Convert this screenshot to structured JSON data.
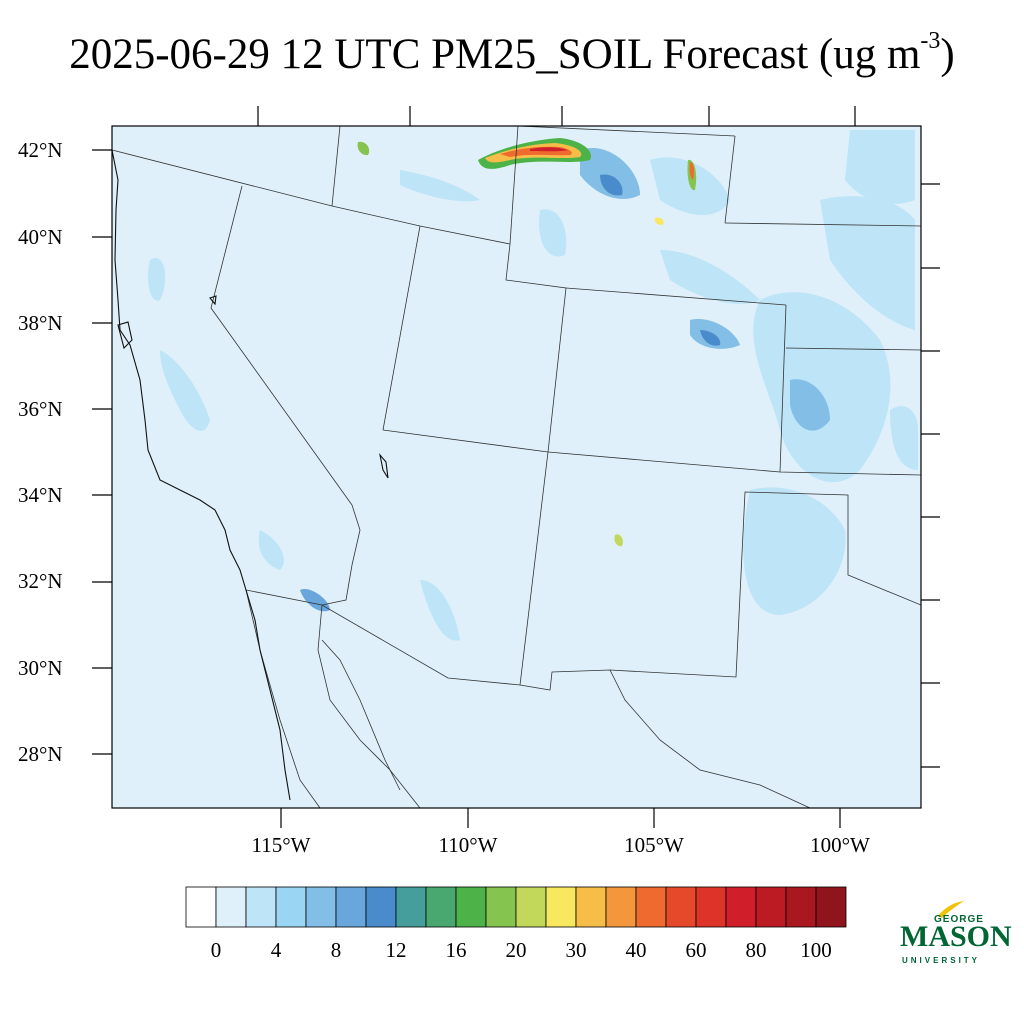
{
  "title": {
    "main": "2025-06-29 12 UTC PM25_SOIL Forecast (ug m",
    "superscript": "-3",
    "close": ")"
  },
  "map": {
    "latitude_labels": [
      "42°N",
      "40°N",
      "38°N",
      "36°N",
      "34°N",
      "32°N",
      "30°N",
      "28°N"
    ],
    "longitude_labels": [
      "115°W",
      "110°W",
      "105°W",
      "100°W"
    ],
    "background_color": "#dff0fa",
    "hotspots": [
      {
        "name": "wyoming-north",
        "level": "60-100"
      },
      {
        "name": "wyoming-east",
        "level": "40-60"
      },
      {
        "name": "idaho-east",
        "level": "16-20"
      }
    ]
  },
  "colorbar": {
    "colors": [
      "#ffffff",
      "#dff0fa",
      "#bde4f7",
      "#9ad6f3",
      "#82bee5",
      "#68a6dc",
      "#4a8ccb",
      "#459e9b",
      "#49a86f",
      "#4db348",
      "#86c450",
      "#c2d85a",
      "#f7e85f",
      "#f6be48",
      "#f4963c",
      "#ef6a2e",
      "#e6492a",
      "#dd3328",
      "#d01f2a",
      "#bc1b24",
      "#a9181f",
      "#8f141b"
    ],
    "tick_labels": [
      "0",
      "4",
      "8",
      "12",
      "16",
      "20",
      "30",
      "40",
      "60",
      "80",
      "100"
    ]
  },
  "logo": {
    "top": "GEORGE",
    "brand": "MASON",
    "bottom": "UNIVERSITY"
  }
}
